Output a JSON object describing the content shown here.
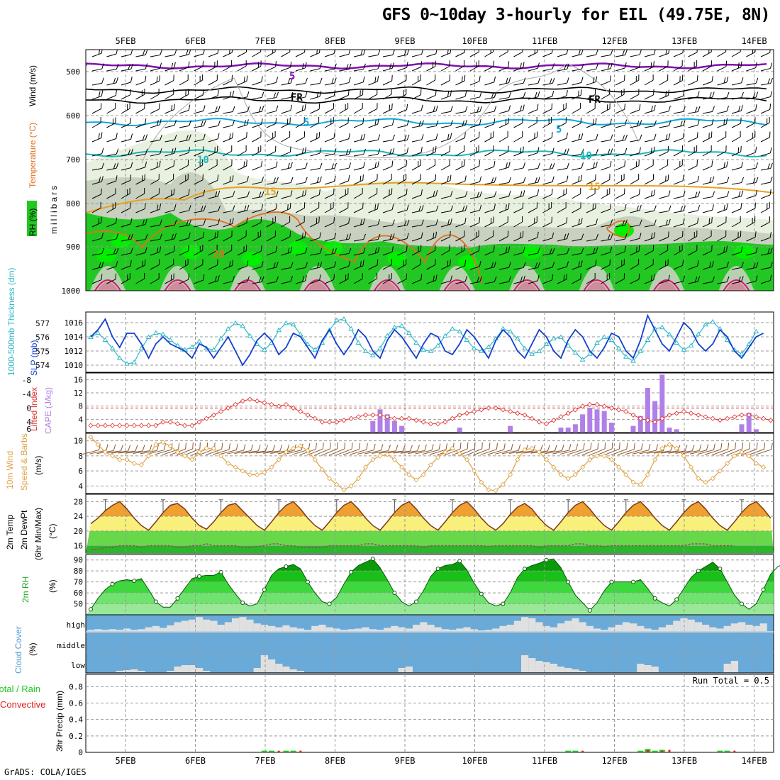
{
  "title": "GFS 0~10day 3-hourly for EIL (49.75E, 8N)",
  "credit": "GrADS: COLA/IGES",
  "dates": [
    "5FEB",
    "6FEB",
    "7FEB",
    "8FEB",
    "9FEB",
    "10FEB",
    "11FEB",
    "12FEB",
    "13FEB",
    "14FEB"
  ],
  "colors": {
    "rh_green": "#22c822",
    "rh_bright": "#00f000",
    "rh_light": "#e8f0e0",
    "rh_grey": "#c8d0c0",
    "temp_purple": "#8010b0",
    "temp_cyan": "#10a8d8",
    "temp_teal": "#18b8b8",
    "temp_orange": "#e8a020",
    "temp_dark_orange": "#e07020",
    "temp_magenta": "#e0107a",
    "slp": "#1040d0",
    "thickness": "#30b8c8",
    "cape": "#b080e8",
    "lifted": "#e03030",
    "wind_speed": "#e0a040",
    "barb": "#8a5a30",
    "cloud": "#6aaad8",
    "cloud_cover": "#e0e0e0",
    "precip_total": "#20c020",
    "precip_conv": "#e02020"
  },
  "panels": {
    "upper_air": {
      "ylabel_rh": "RH (%)",
      "ylabel_temp": "Temperature (°C)",
      "ylabel_wind": "Wind (m/s)",
      "ylabel_p": "millibars",
      "levels": [
        "500",
        "600",
        "700",
        "800",
        "900",
        "1000"
      ],
      "contour_labels": [
        "5",
        "FR",
        "5",
        "10",
        "15",
        "15",
        "20",
        "FR",
        "5",
        "10",
        "30",
        "10"
      ]
    },
    "slp_thickness": {
      "ylabel_thk": "1000-500mb Thickness (dm)",
      "ylabel_slp": "SLP (mb)",
      "thk_ticks": [
        "577",
        "576",
        "575",
        "574"
      ],
      "slp_ticks": [
        "1016",
        "1014",
        "1012",
        "1010"
      ]
    },
    "cape_li": {
      "ylabel_li": "Lifted Index",
      "ylabel_cape": "CAPE (J/kg)",
      "li_ticks": [
        "-8",
        "-4",
        "0",
        "4",
        "6"
      ],
      "cape_ticks": [
        "16",
        "12",
        "8",
        "4"
      ]
    },
    "wind10m": {
      "ylabel1": "10m Wind",
      "ylabel2": "Speed & Barbs",
      "ylabel3": "(m/s)",
      "ticks": [
        "10",
        "8",
        "6",
        "4"
      ]
    },
    "temp2m": {
      "ylabel1": "2m Temp",
      "ylabel2": "2m DewPt",
      "ylabel3": "(6hr Min/Max)",
      "ylabel4": "(°C)",
      "ticks": [
        "28",
        "24",
        "20",
        "16"
      ]
    },
    "rh2m": {
      "ylabel1": "2m RH",
      "ylabel2": "(%)",
      "ticks": [
        "90",
        "80",
        "70",
        "60",
        "50"
      ]
    },
    "cloud": {
      "ylabel1": "Cloud Cover",
      "ylabel2": "(%)",
      "levels": [
        "high",
        "middle",
        "low"
      ]
    },
    "precip": {
      "ylabel_total": "Total / Rain",
      "ylabel_conv": "Convective",
      "ylabel_precip": "3hr Precip (mm)",
      "ticks": [
        "0.8",
        "0.6",
        "0.4",
        "0.2",
        "0"
      ],
      "run_total": "Run Total = 0.5"
    }
  },
  "chart_data": [
    {
      "type": "line",
      "title": "Sea Level Pressure (mb)",
      "ylim": [
        1009,
        1017.5
      ],
      "x_start": "4FEB 12Z",
      "x_step_hours": 3,
      "values": [
        1014,
        1015,
        1016.5,
        1014,
        1012.5,
        1014.5,
        1014.5,
        1013,
        1011,
        1013,
        1014,
        1013,
        1012.5,
        1012,
        1011,
        1013,
        1012.5,
        1011,
        1012.5,
        1014,
        1012,
        1010,
        1011.5,
        1013.5,
        1014.5,
        1013.5,
        1011.5,
        1012.5,
        1014.5,
        1014,
        1012.5,
        1011,
        1013.5,
        1015,
        1013,
        1011.5,
        1013,
        1015,
        1014,
        1012,
        1011,
        1013.5,
        1015,
        1014,
        1012.5,
        1011,
        1013,
        1014.5,
        1014,
        1012,
        1011.5,
        1013,
        1015,
        1014,
        1012.5,
        1011,
        1013.5,
        1015,
        1014,
        1012,
        1011,
        1013,
        1015,
        1014,
        1012,
        1011,
        1013.5,
        1015,
        1014,
        1012,
        1011,
        1012.5,
        1014.5,
        1014,
        1012,
        1011,
        1013.5,
        1017,
        1015,
        1013,
        1012,
        1014,
        1016,
        1015,
        1013,
        1012,
        1013,
        1015,
        1014,
        1012,
        1011,
        1012.5,
        1014,
        1014.5
      ]
    },
    {
      "type": "line",
      "title": "1000-500mb Thickness (dm)",
      "ylim": [
        573.5,
        577.8
      ],
      "values": [
        576,
        576.3,
        575.8,
        575.2,
        574.5,
        574.1,
        574.2,
        575.2,
        576,
        576.3,
        576.2,
        575.8,
        575.4,
        575.1,
        575.3,
        575.7,
        575.2,
        575.1,
        575.9,
        576.6,
        577,
        576.8,
        576.1,
        575.5,
        575.1,
        575.6,
        576.5,
        577,
        576.9,
        576.2,
        575.5,
        575.1,
        575.6,
        576.5,
        577.2,
        577.3,
        576.6,
        575.6,
        575,
        574.7,
        575.2,
        576.1,
        576.7,
        576.8,
        576.3,
        575.6,
        575.1,
        575,
        575.4,
        576.1,
        576.6,
        576.4,
        575.8,
        575.2,
        575,
        575.3,
        575.9,
        576.6,
        576.4,
        575.9,
        575.2,
        574.8,
        575,
        575.5,
        575.9,
        576,
        575.4,
        574.9,
        574.4,
        574.8,
        575.6,
        576,
        575.8,
        575.2,
        574.6,
        574.3,
        575,
        575.8,
        576.6,
        576.7,
        576.2,
        575.6,
        575.1,
        575.4,
        576.2,
        576.9,
        577.1,
        576.6,
        575.8,
        575.1,
        574.8,
        575.5,
        576.4
      ]
    },
    {
      "type": "line",
      "title": "Lifted Index",
      "ylim": [
        -10,
        7
      ],
      "values": [
        5,
        5,
        5,
        5,
        5,
        5,
        5,
        5,
        5,
        5,
        4,
        4,
        4.5,
        5,
        5,
        4,
        3,
        2,
        1,
        0,
        -1,
        -2,
        -2.5,
        -2,
        -1.5,
        -1,
        -0.5,
        -1,
        0,
        1,
        2,
        3,
        4,
        4,
        4,
        3.5,
        3,
        2.5,
        2,
        2,
        2,
        2.5,
        3,
        3,
        3,
        3.5,
        4,
        4.5,
        4.5,
        4,
        3,
        2,
        1.5,
        1,
        0.5,
        0,
        0,
        0.5,
        1,
        1.5,
        2,
        3,
        4,
        4.5,
        3.5,
        2.5,
        1.5,
        0.5,
        -0.5,
        -1,
        -1,
        -0.5,
        0,
        0.5,
        1,
        2,
        3,
        3.5,
        4,
        3,
        2,
        1.5,
        1,
        1.5,
        2,
        2.5,
        3,
        3.5,
        3,
        2.5,
        2,
        2,
        2.5,
        3,
        3.5
      ]
    },
    {
      "type": "bar",
      "title": "CAPE (J/kg)",
      "ylim": [
        0,
        18
      ],
      "x_index": [
        39,
        40,
        41,
        42,
        43,
        51,
        58,
        65,
        66,
        67,
        68,
        69,
        70,
        71,
        72,
        75,
        76,
        77,
        78,
        79,
        80,
        81,
        90,
        91,
        92
      ],
      "values": [
        3.5,
        7,
        5.5,
        3.5,
        2,
        1.5,
        2,
        1.5,
        1.5,
        2.5,
        5.5,
        7.5,
        7,
        6.5,
        3,
        2,
        5,
        13.5,
        9.5,
        17.5,
        1.5,
        1,
        2.5,
        6,
        1
      ]
    },
    {
      "type": "line",
      "title": "10m Wind Speed (m/s)",
      "ylim": [
        3,
        11
      ],
      "values": [
        10.5,
        9.5,
        8.5,
        8,
        7.5,
        7.5,
        7,
        6.8,
        8,
        9.5,
        9.8,
        9.3,
        8.5,
        8,
        7.5,
        8.5,
        9,
        9,
        8,
        7,
        6.5,
        6,
        5.5,
        5.5,
        5.8,
        6.5,
        7.5,
        8.5,
        9,
        9.3,
        8.7,
        7.5,
        6.2,
        5,
        4.2,
        3.5,
        4,
        5,
        6.5,
        7.5,
        8,
        8.2,
        7.5,
        6.5,
        5.5,
        4.8,
        5.5,
        6.8,
        7.8,
        8.5,
        9,
        8.3,
        7.5,
        6,
        4.5,
        3.5,
        3.4,
        4.2,
        5.5,
        7.5,
        8.8,
        9,
        8.5,
        7.5,
        6.5,
        5.5,
        5,
        5.5,
        6.5,
        7.5,
        8,
        8,
        7.5,
        6.5,
        5.5,
        4.5,
        4.2,
        5.5,
        7.5,
        9,
        9.5,
        9,
        8,
        6.5,
        5,
        4.5,
        5,
        6,
        7,
        8,
        8.5,
        8,
        7,
        6.5
      ]
    },
    {
      "type": "area",
      "title": "2m Temperature (°C)",
      "ylim": [
        14,
        30
      ],
      "values": [
        22,
        23.5,
        25.5,
        27,
        28,
        26,
        23.5,
        21.5,
        20.2,
        22.5,
        25,
        27,
        27.5,
        26,
        23.5,
        21.5,
        20.5,
        22.5,
        25,
        27,
        27.5,
        25.5,
        23.5,
        21.5,
        20.2,
        22.5,
        25,
        27,
        28,
        26,
        23.5,
        21.5,
        20.2,
        22.5,
        25,
        27,
        28,
        26,
        23.5,
        21.5,
        20.2,
        22.5,
        25,
        27,
        28,
        26,
        23.5,
        21.5,
        20.2,
        22.5,
        25,
        27,
        28,
        26,
        23.5,
        21.5,
        20.2,
        22,
        24.5,
        26.5,
        27.5,
        26,
        23.5,
        21.5,
        20.2,
        22.5,
        25,
        27,
        28,
        26,
        23.5,
        21.5,
        20.2,
        22.5,
        25,
        27,
        28,
        26,
        23.5,
        21.5,
        20.2,
        22.5,
        25,
        27,
        28,
        26,
        23.5,
        21.5,
        20.2,
        22.5,
        25,
        27,
        28,
        26,
        23.5
      ]
    },
    {
      "type": "line",
      "title": "2m Dew Point (°C)",
      "ylim": [
        14,
        30
      ],
      "values": [
        15,
        15,
        15.5,
        15.5,
        16,
        16,
        16,
        15.5,
        16,
        16,
        16,
        16,
        15.5,
        15.5,
        16,
        16,
        16.5,
        16,
        16,
        16,
        16,
        15.5,
        15.5,
        15.8,
        16,
        16.5,
        16.5,
        16,
        16,
        15.5,
        15.5,
        15.5,
        15.5,
        16,
        16,
        16,
        16,
        16,
        16.5,
        16.5,
        16,
        16,
        16,
        16,
        16,
        16,
        15.5,
        16,
        16,
        16,
        16,
        16,
        16,
        16,
        16,
        15.8,
        16,
        16,
        16,
        16,
        16,
        16,
        15.5,
        16,
        16,
        16,
        16,
        16.5,
        16.5,
        16,
        16,
        15.8,
        16,
        16,
        16,
        16,
        16,
        16,
        16,
        16,
        16,
        16,
        16,
        16.5,
        16.5,
        16.5,
        16,
        16,
        16,
        16
      ]
    },
    {
      "type": "area",
      "title": "2m RH (%)",
      "ylim": [
        40,
        95
      ],
      "values": [
        45,
        55,
        63,
        68,
        71,
        72,
        71,
        73,
        63,
        52,
        47,
        47,
        55,
        64,
        73,
        75,
        76,
        76,
        79,
        68,
        59,
        51,
        48,
        50,
        63,
        76,
        82,
        84,
        86,
        82,
        70,
        60,
        52,
        50,
        56,
        68,
        79,
        85,
        88,
        91,
        83,
        72,
        60,
        52,
        48,
        52,
        62,
        75,
        82,
        85,
        86,
        89,
        81,
        69,
        59,
        51,
        48,
        50,
        60,
        74,
        82,
        85,
        87,
        90,
        91,
        83,
        70,
        58,
        51,
        44,
        51,
        62,
        70,
        70,
        70,
        70,
        72,
        64,
        55,
        51,
        48,
        54,
        64,
        74,
        80,
        84,
        88,
        82,
        70,
        58,
        50,
        45,
        50,
        63,
        77,
        84,
        87,
        79,
        68,
        57,
        51,
        48,
        50,
        60,
        72,
        80,
        84,
        86,
        84,
        58
      ]
    },
    {
      "type": "bar",
      "title": "3hr Precip (mm)",
      "ylim": [
        0,
        0.9
      ],
      "total_x_index": [
        24,
        25,
        27,
        28,
        66,
        67,
        76,
        77,
        78,
        79,
        87,
        88
      ],
      "total": [
        0.02,
        0.02,
        0.02,
        0.02,
        0.02,
        0.02,
        0.02,
        0.04,
        0.02,
        0.03,
        0.02,
        0.02
      ],
      "conv_x_index": [
        26,
        29,
        68,
        77,
        79,
        80,
        89
      ],
      "convective": [
        0.02,
        0.02,
        0.02,
        0.03,
        0.02,
        0.03,
        0.02
      ],
      "run_total": 0.5
    }
  ]
}
